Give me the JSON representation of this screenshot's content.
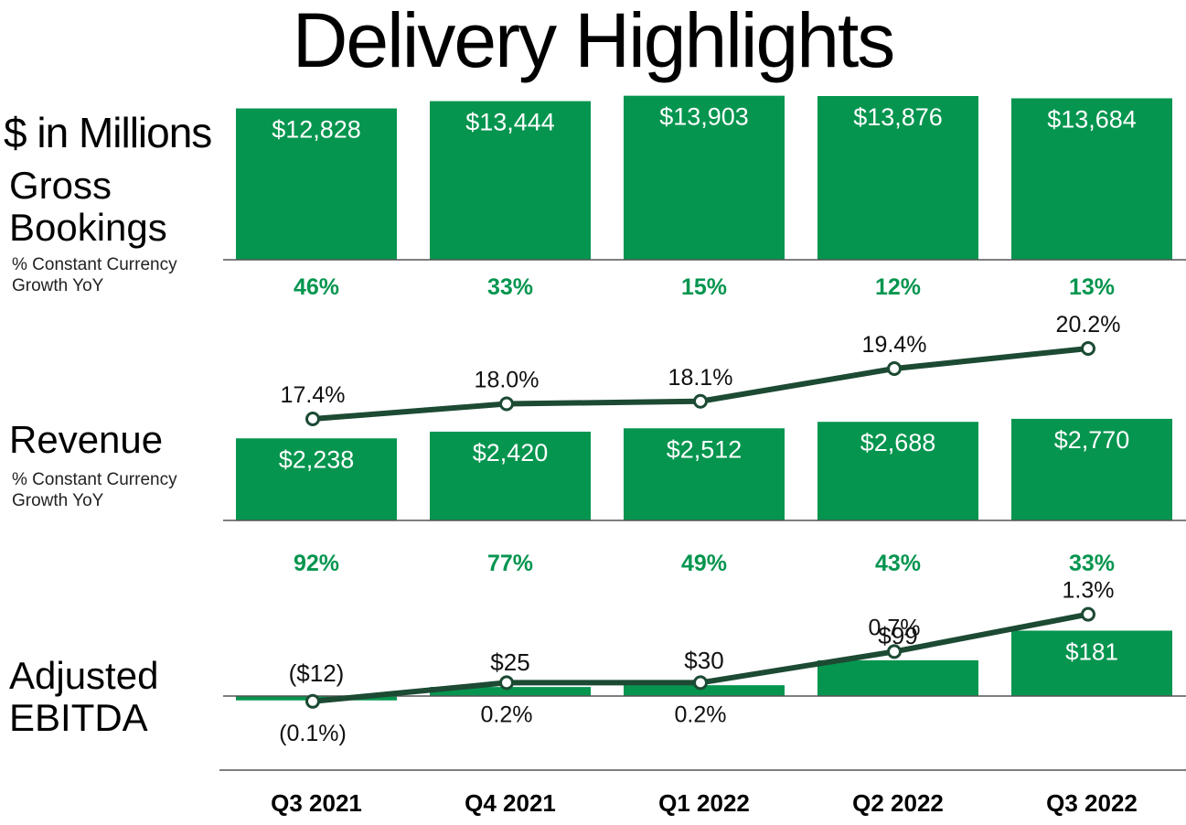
{
  "title": "Delivery Highlights",
  "units_label": "$ in Millions",
  "colors": {
    "bar": "#05954F",
    "line": "#1C4A33",
    "growth_text": "#05954F"
  },
  "categories": [
    "Q3 2021",
    "Q4 2021",
    "Q1 2022",
    "Q2 2022",
    "Q3 2022"
  ],
  "sections": {
    "gross_bookings": {
      "label": "Gross Bookings",
      "sublabel": "% Constant Currency Growth YoY"
    },
    "revenue": {
      "label": "Revenue",
      "sublabel": "% Constant Currency Growth YoY"
    },
    "adjusted_ebitda": {
      "label": "Adjusted EBITDA"
    }
  },
  "chart_data": [
    {
      "type": "bar",
      "name": "Gross Bookings",
      "categories": [
        "Q3 2021",
        "Q4 2021",
        "Q1 2022",
        "Q2 2022",
        "Q3 2022"
      ],
      "values": [
        12828,
        13444,
        13903,
        13876,
        13684
      ],
      "value_labels": [
        "$12,828",
        "$13,444",
        "$13,903",
        "$13,876",
        "$13,684"
      ],
      "growth_yoy_labels": [
        "46%",
        "33%",
        "15%",
        "12%",
        "13%"
      ]
    },
    {
      "type": "bar",
      "name": "Revenue",
      "categories": [
        "Q3 2021",
        "Q4 2021",
        "Q1 2022",
        "Q2 2022",
        "Q3 2022"
      ],
      "values": [
        2238,
        2420,
        2512,
        2688,
        2770
      ],
      "value_labels": [
        "$2,238",
        "$2,420",
        "$2,512",
        "$2,688",
        "$2,770"
      ],
      "take_rate": [
        17.4,
        18.0,
        18.1,
        19.4,
        20.2
      ],
      "take_rate_labels": [
        "17.4%",
        "18.0%",
        "18.1%",
        "19.4%",
        "20.2%"
      ],
      "growth_yoy_labels": [
        "92%",
        "77%",
        "49%",
        "43%",
        "33%"
      ]
    },
    {
      "type": "bar",
      "name": "Adjusted EBITDA",
      "categories": [
        "Q3 2021",
        "Q4 2021",
        "Q1 2022",
        "Q2 2022",
        "Q3 2022"
      ],
      "values": [
        -12,
        25,
        30,
        99,
        181
      ],
      "value_labels": [
        "($12)",
        "$25",
        "$30",
        "$99",
        "$181"
      ],
      "margin": [
        -0.1,
        0.2,
        0.2,
        0.7,
        1.3
      ],
      "margin_labels": [
        "(0.1%)",
        "0.2%",
        "0.2%",
        "0.7%",
        "1.3%"
      ]
    }
  ]
}
